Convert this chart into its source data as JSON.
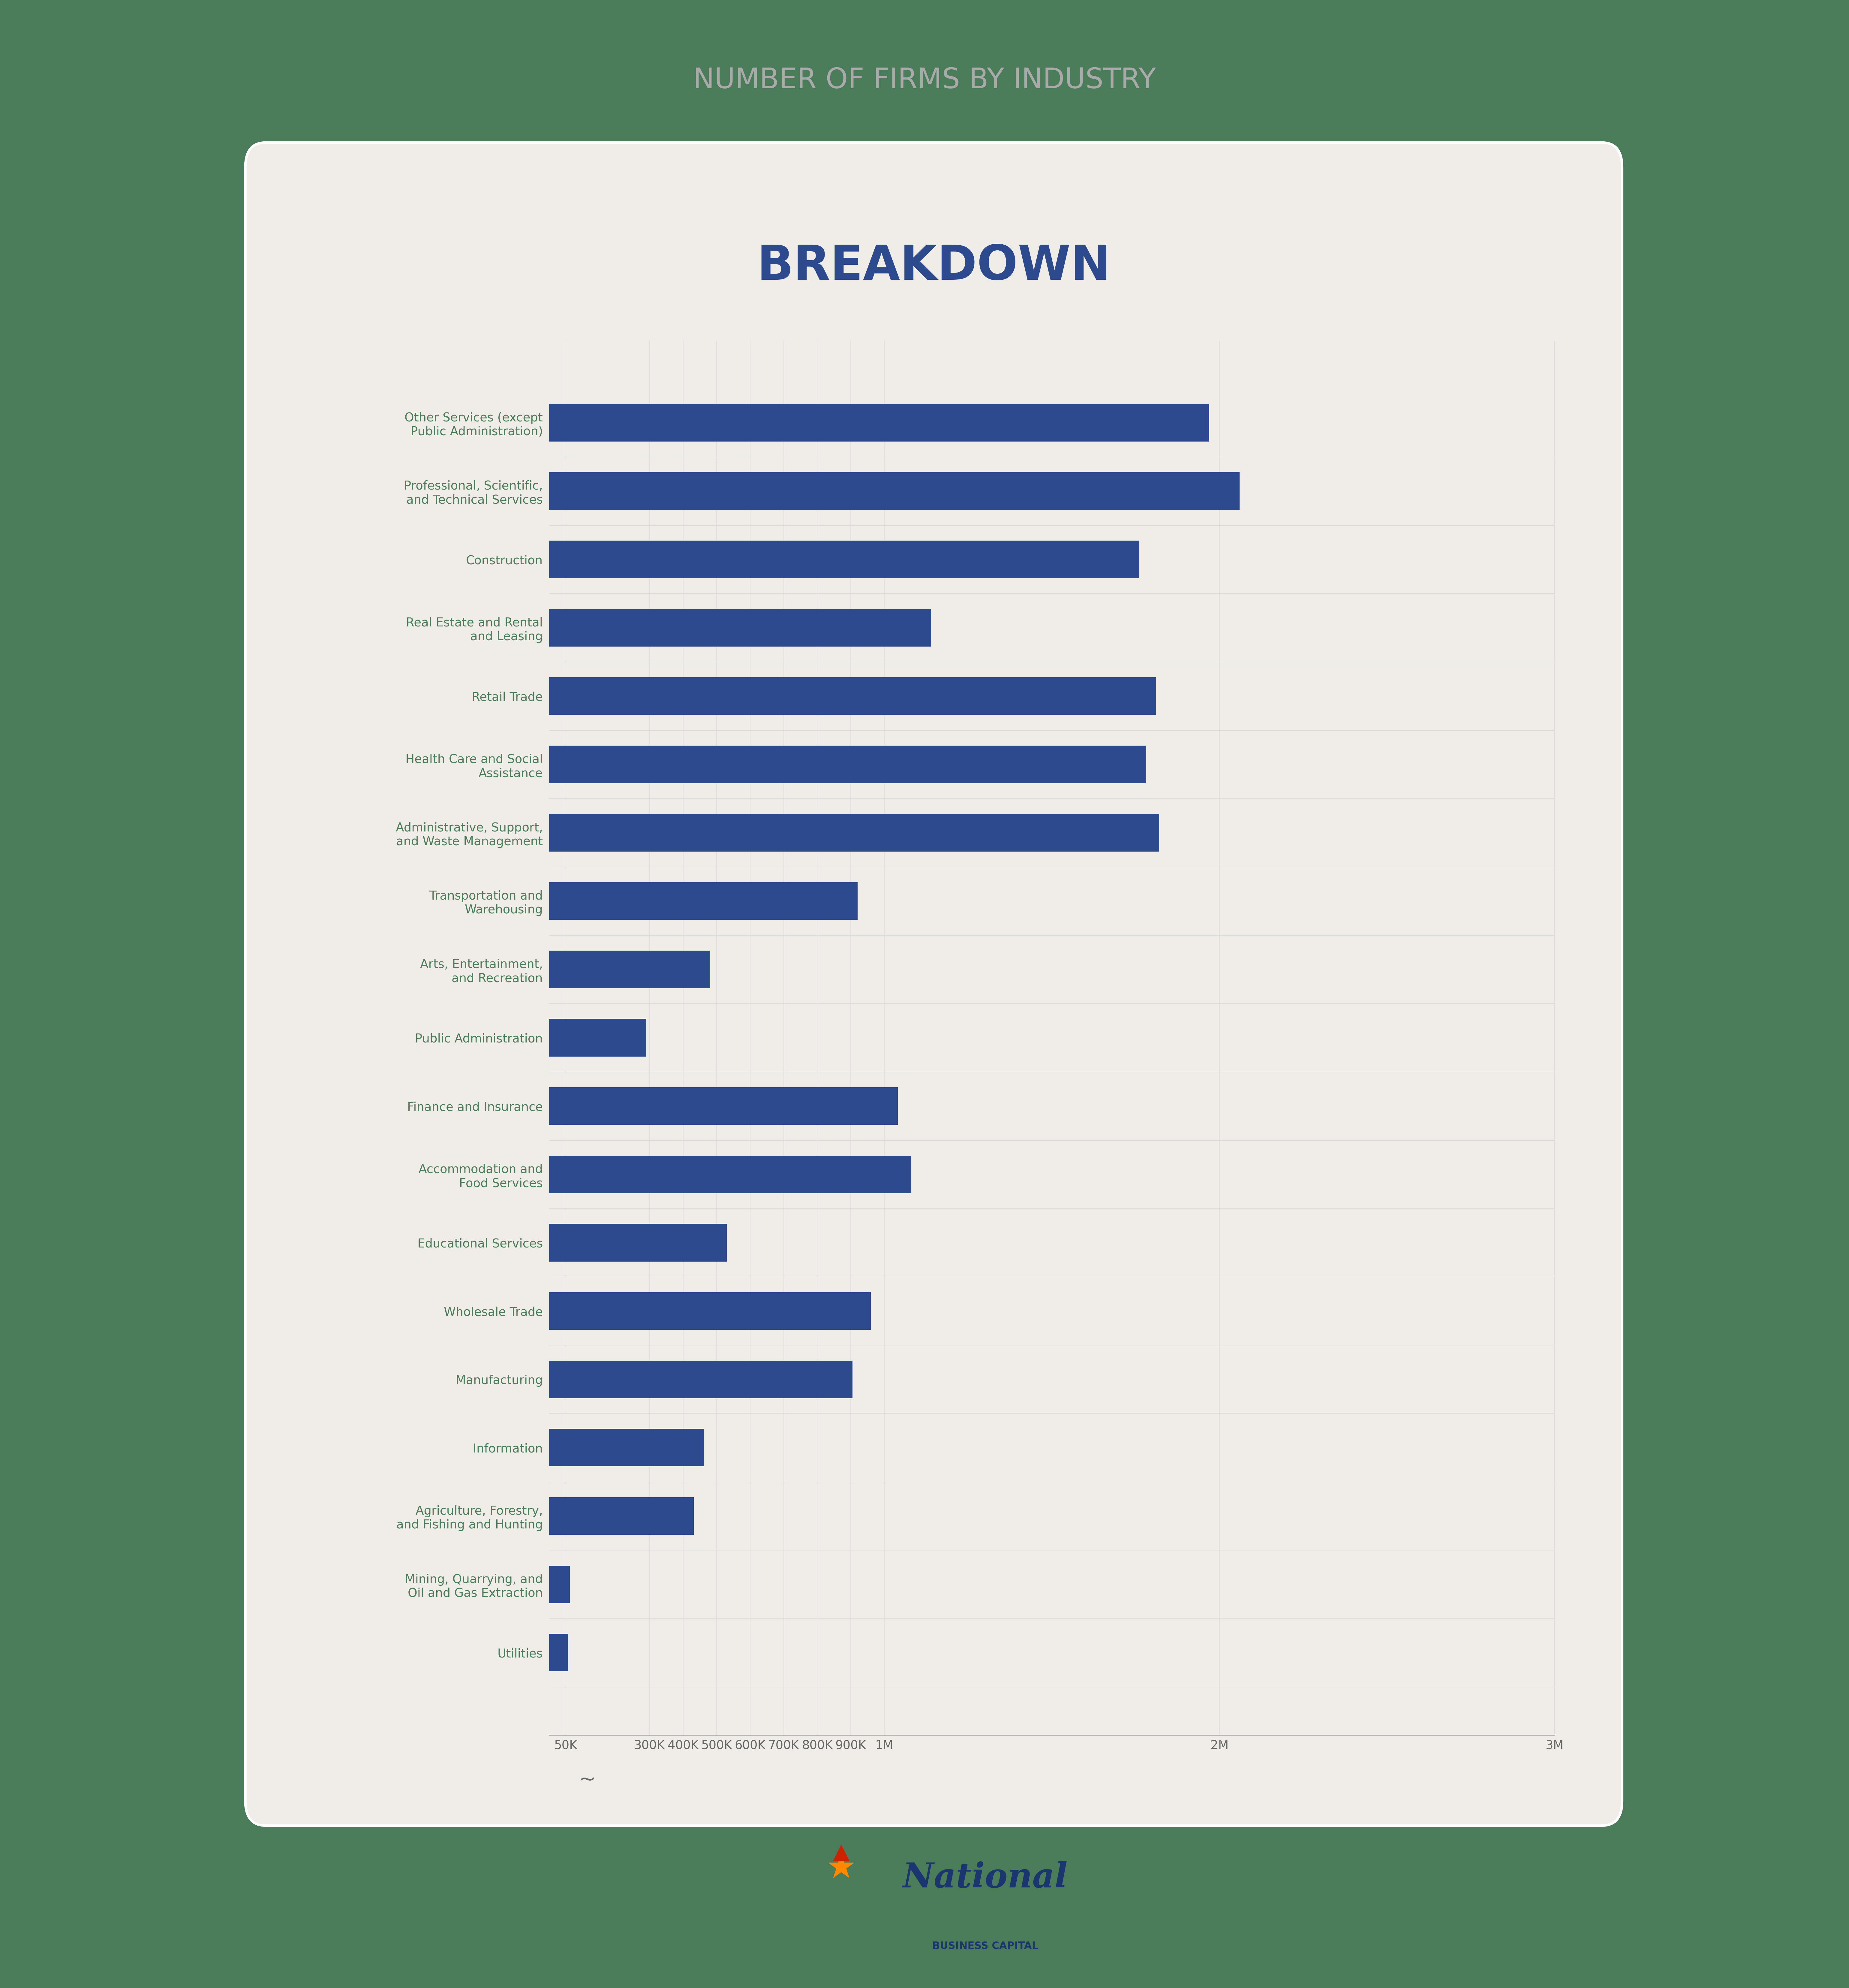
{
  "title_top": "NUMBER OF FIRMS BY INDUSTRY",
  "title_main": "BREAKDOWN",
  "background_color": "#4a7c59",
  "card_color": "#f0ede8",
  "bar_color": "#2e4a8e",
  "label_color": "#4a7c59",
  "title_top_color": "#aaaaaa",
  "title_main_color": "#2e4a8e",
  "categories": [
    "Other Services (except\nPublic Administration)",
    "Professional, Scientific,\nand Technical Services",
    "Construction",
    "Real Estate and Rental\nand Leasing",
    "Retail Trade",
    "Health Care and Social\nAssistance",
    "Administrative, Support,\nand Waste Management",
    "Transportation and\nWarehousing",
    "Arts, Entertainment,\nand Recreation",
    "Public Administration",
    "Finance and Insurance",
    "Accommodation and\nFood Services",
    "Educational Services",
    "Wholesale Trade",
    "Manufacturing",
    "Information",
    "Agriculture, Forestry,\nand Fishing and Hunting",
    "Mining, Quarrying, and\nOil and Gas Extraction",
    "Utilities"
  ],
  "values": [
    1970000,
    2060000,
    1760000,
    1140000,
    1810000,
    1780000,
    1820000,
    920000,
    480000,
    290000,
    1040000,
    1080000,
    530000,
    960000,
    905000,
    462000,
    432000,
    62000,
    57000
  ],
  "xlim_display": 2200000,
  "xtick_vals": [
    50000,
    300000,
    400000,
    500000,
    600000,
    700000,
    800000,
    900000,
    1000000,
    2000000,
    3000000
  ],
  "xtick_labels": [
    "50K",
    "300K",
    "400K",
    "500K",
    "600K",
    "700K",
    "800K",
    "900K",
    "1M",
    "2M",
    "3M"
  ],
  "logo_text_national": "National",
  "logo_text_sub": "BUSINESS CAPITAL"
}
